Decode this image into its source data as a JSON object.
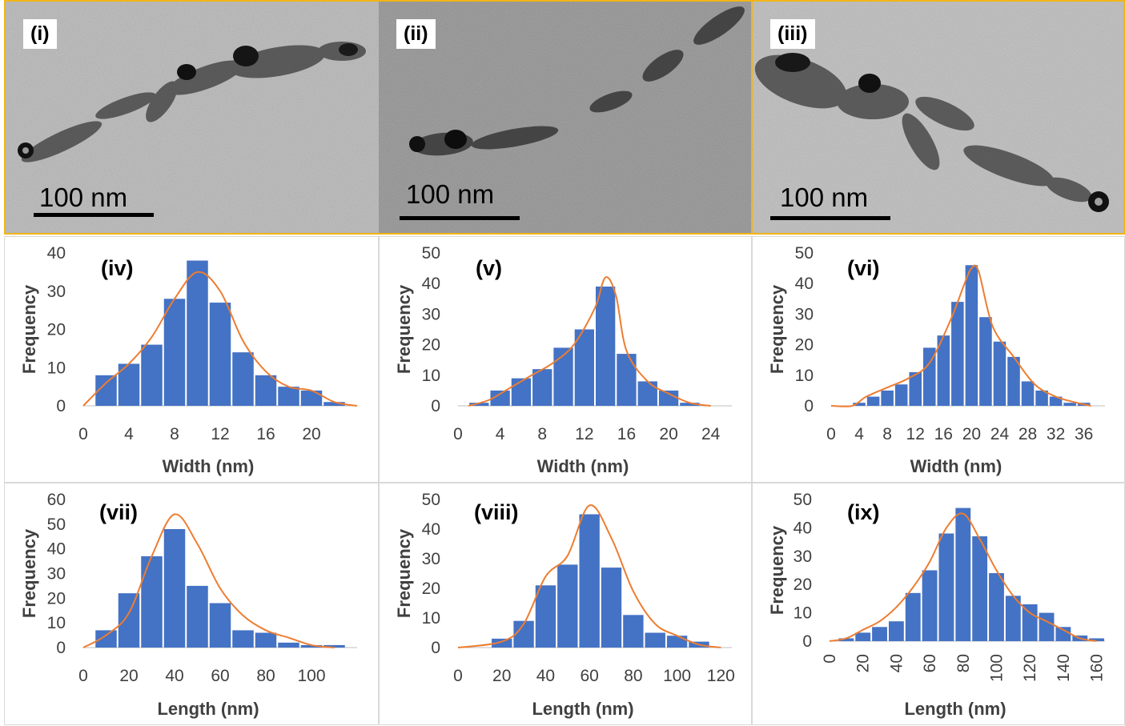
{
  "tem_images": [
    {
      "label": "(i)",
      "scale_text": "100 nm"
    },
    {
      "label": "(ii)",
      "scale_text": "100 nm"
    },
    {
      "label": "(iii)",
      "scale_text": "100 nm"
    }
  ],
  "colors": {
    "bar": "#4472c4",
    "curve": "#ed7d31",
    "frame": "#f2b418",
    "text": "#404040"
  },
  "chart_data": [
    {
      "id": "iv",
      "type": "bar",
      "label": "(iv)",
      "xlabel": "Width (nm)",
      "ylabel": "Frequency",
      "x_ticks": [
        "0",
        "4",
        "8",
        "12",
        "16",
        "20"
      ],
      "y_ticks": [
        "0",
        "10",
        "20",
        "30",
        "40"
      ],
      "xlim": [
        0,
        24
      ],
      "ylim": [
        0,
        40
      ],
      "bins": [
        2,
        4,
        6,
        8,
        10,
        12,
        14,
        16,
        18,
        20,
        22
      ],
      "values": [
        8,
        11,
        16,
        28,
        38,
        27,
        14,
        8,
        5,
        4,
        1
      ],
      "curve": [
        [
          0,
          0
        ],
        [
          2,
          6
        ],
        [
          4,
          11
        ],
        [
          6,
          18
        ],
        [
          8,
          28
        ],
        [
          10,
          35
        ],
        [
          12,
          30
        ],
        [
          14,
          17
        ],
        [
          16,
          9
        ],
        [
          18,
          5
        ],
        [
          20,
          4
        ],
        [
          22,
          1
        ],
        [
          24,
          0
        ]
      ]
    },
    {
      "id": "v",
      "type": "bar",
      "label": "(v)",
      "xlabel": "Width (nm)",
      "ylabel": "Frequency",
      "x_ticks": [
        "0",
        "4",
        "8",
        "12",
        "16",
        "20",
        "24"
      ],
      "y_ticks": [
        "0",
        "10",
        "20",
        "30",
        "40",
        "50"
      ],
      "xlim": [
        0,
        26
      ],
      "ylim": [
        0,
        50
      ],
      "bins": [
        2,
        4,
        6,
        8,
        10,
        12,
        14,
        16,
        18,
        20,
        22
      ],
      "values": [
        1,
        5,
        9,
        12,
        19,
        25,
        39,
        17,
        8,
        5,
        1
      ],
      "curve": [
        [
          1,
          0
        ],
        [
          3,
          2
        ],
        [
          5,
          6
        ],
        [
          7,
          10
        ],
        [
          9,
          14
        ],
        [
          11,
          20
        ],
        [
          13,
          32
        ],
        [
          14,
          42
        ],
        [
          15,
          36
        ],
        [
          16,
          18
        ],
        [
          18,
          8
        ],
        [
          20,
          4
        ],
        [
          22,
          1
        ],
        [
          24,
          0
        ]
      ]
    },
    {
      "id": "vi",
      "type": "bar",
      "label": "(vi)",
      "xlabel": "Width (nm)",
      "ylabel": "Frequency",
      "x_ticks": [
        "0",
        "4",
        "8",
        "12",
        "16",
        "20",
        "24",
        "28",
        "32",
        "36"
      ],
      "y_ticks": [
        "0",
        "10",
        "20",
        "30",
        "40",
        "50"
      ],
      "xlim": [
        0,
        39
      ],
      "ylim": [
        0,
        50
      ],
      "bins": [
        4,
        6,
        8,
        10,
        12,
        14,
        16,
        18,
        20,
        22,
        24,
        26,
        28,
        30,
        32,
        34,
        36
      ],
      "values": [
        1,
        3,
        5,
        7,
        11,
        19,
        23,
        34,
        46,
        29,
        21,
        16,
        8,
        5,
        3,
        1,
        1
      ],
      "curve": [
        [
          0,
          0
        ],
        [
          3,
          0
        ],
        [
          5,
          3
        ],
        [
          8,
          6
        ],
        [
          11,
          9
        ],
        [
          14,
          14
        ],
        [
          17,
          28
        ],
        [
          19,
          40
        ],
        [
          20,
          45
        ],
        [
          21,
          44
        ],
        [
          23,
          26
        ],
        [
          26,
          16
        ],
        [
          29,
          7
        ],
        [
          32,
          3
        ],
        [
          35,
          1
        ],
        [
          37,
          0
        ]
      ]
    },
    {
      "id": "vii",
      "type": "bar",
      "label": "(vii)",
      "xlabel": "Length (nm)",
      "ylabel": "Frequency",
      "x_ticks": [
        "0",
        "20",
        "40",
        "60",
        "80",
        "100"
      ],
      "y_ticks": [
        "0",
        "10",
        "20",
        "30",
        "40",
        "50",
        "60"
      ],
      "xlim": [
        0,
        120
      ],
      "ylim": [
        0,
        60
      ],
      "bins": [
        10,
        20,
        30,
        40,
        50,
        60,
        70,
        80,
        90,
        100,
        110
      ],
      "values": [
        7,
        22,
        37,
        48,
        25,
        18,
        7,
        6,
        2,
        1,
        1
      ],
      "curve": [
        [
          0,
          0
        ],
        [
          10,
          5
        ],
        [
          20,
          14
        ],
        [
          30,
          37
        ],
        [
          40,
          54
        ],
        [
          50,
          42
        ],
        [
          60,
          24
        ],
        [
          70,
          13
        ],
        [
          80,
          7
        ],
        [
          90,
          4
        ],
        [
          100,
          1
        ],
        [
          110,
          0
        ]
      ]
    },
    {
      "id": "viii",
      "type": "bar",
      "label": "(viii)",
      "xlabel": "Length (nm)",
      "ylabel": "Frequency",
      "x_ticks": [
        "0",
        "20",
        "40",
        "60",
        "80",
        "100",
        "120"
      ],
      "y_ticks": [
        "0",
        "10",
        "20",
        "30",
        "40",
        "50"
      ],
      "xlim": [
        0,
        125
      ],
      "ylim": [
        0,
        50
      ],
      "bins": [
        20,
        30,
        40,
        50,
        60,
        70,
        80,
        90,
        100,
        110
      ],
      "values": [
        3,
        9,
        21,
        28,
        45,
        27,
        11,
        5,
        4,
        2
      ],
      "curve": [
        [
          0,
          0
        ],
        [
          20,
          2
        ],
        [
          30,
          8
        ],
        [
          40,
          24
        ],
        [
          50,
          31
        ],
        [
          60,
          48
        ],
        [
          70,
          37
        ],
        [
          80,
          19
        ],
        [
          90,
          8
        ],
        [
          100,
          4
        ],
        [
          110,
          1
        ],
        [
          120,
          0
        ]
      ]
    },
    {
      "id": "ix",
      "type": "bar",
      "label": "(ix)",
      "xlabel": "Length (nm)",
      "ylabel": "Frequency",
      "x_ticks": [
        "0",
        "20",
        "40",
        "60",
        "80",
        "100",
        "120",
        "140",
        "160"
      ],
      "y_ticks": [
        "0",
        "10",
        "20",
        "30",
        "40",
        "50"
      ],
      "xlim": [
        0,
        165
      ],
      "ylim": [
        0,
        50
      ],
      "bins": [
        10,
        20,
        30,
        40,
        50,
        60,
        70,
        80,
        90,
        100,
        110,
        120,
        130,
        140,
        150,
        160
      ],
      "values": [
        1,
        3,
        5,
        7,
        17,
        25,
        38,
        47,
        37,
        24,
        16,
        13,
        10,
        5,
        2,
        1
      ],
      "curve": [
        [
          0,
          0
        ],
        [
          10,
          1
        ],
        [
          20,
          4
        ],
        [
          30,
          7
        ],
        [
          40,
          12
        ],
        [
          50,
          19
        ],
        [
          60,
          28
        ],
        [
          70,
          40
        ],
        [
          80,
          45
        ],
        [
          90,
          36
        ],
        [
          100,
          25
        ],
        [
          110,
          16
        ],
        [
          120,
          10
        ],
        [
          130,
          7
        ],
        [
          140,
          4
        ],
        [
          150,
          1
        ],
        [
          160,
          0
        ]
      ]
    }
  ]
}
